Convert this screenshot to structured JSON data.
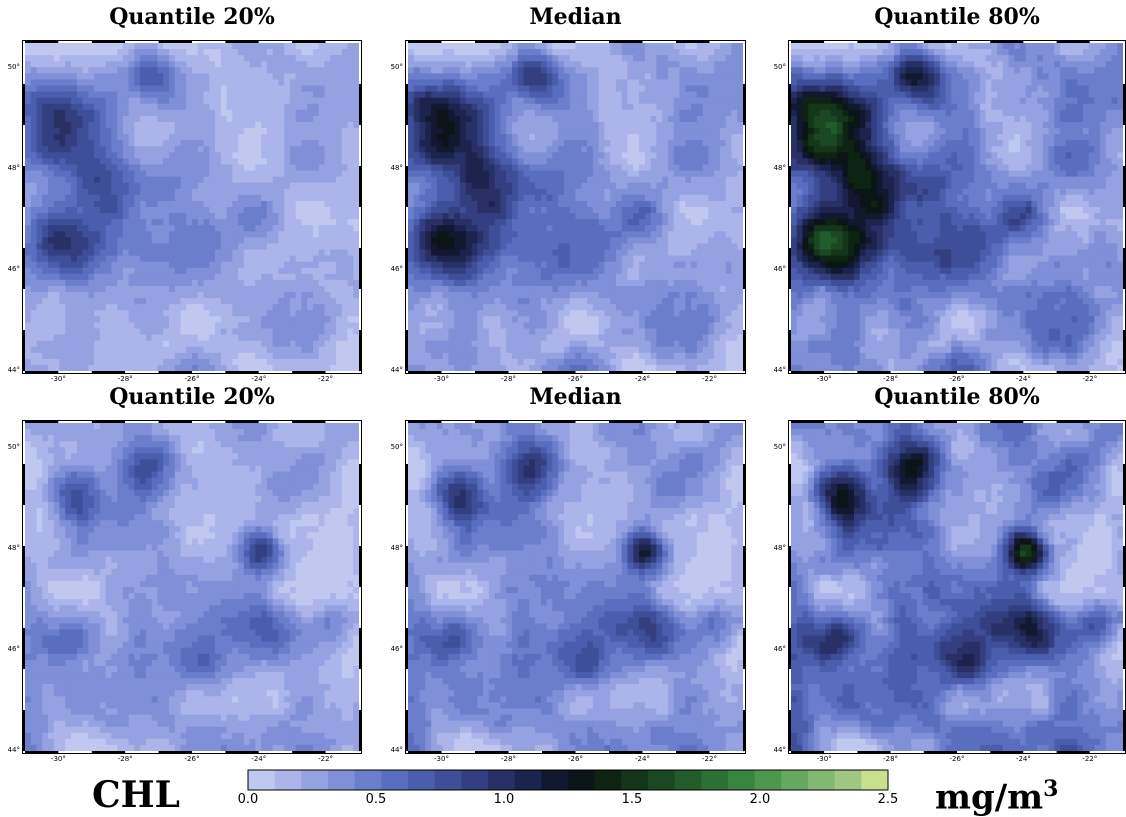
{
  "chart_data": [
    {
      "type": "heatmap",
      "title": "Quantile 20%",
      "variable": "CHL",
      "xlim": [
        -31,
        -21
      ],
      "ylim": [
        44,
        50.5
      ],
      "xticks": [
        "-30°",
        "-28°",
        "-26°",
        "-24°",
        "-22°"
      ],
      "yticks": [
        "44°",
        "46°",
        "48°",
        "50°"
      ]
    },
    {
      "type": "heatmap",
      "title": "Median",
      "variable": "CHL",
      "xlim": [
        -31,
        -21
      ],
      "ylim": [
        44,
        50.5
      ],
      "xticks": [
        "-30°",
        "-28°",
        "-26°",
        "-24°",
        "-22°"
      ],
      "yticks": [
        "44°",
        "46°",
        "48°",
        "50°"
      ]
    },
    {
      "type": "heatmap",
      "title": "Quantile 80%",
      "variable": "CHL",
      "xlim": [
        -31,
        -21
      ],
      "ylim": [
        44,
        50.5
      ],
      "xticks": [
        "-30°",
        "-28°",
        "-26°",
        "-24°",
        "-22°"
      ],
      "yticks": [
        "44°",
        "46°",
        "48°",
        "50°"
      ]
    },
    {
      "type": "heatmap",
      "title": "Quantile 20%",
      "variable": "CHL",
      "xlim": [
        -31,
        -21
      ],
      "ylim": [
        44,
        50.5
      ],
      "xticks": [
        "-30°",
        "-28°",
        "-26°",
        "-24°",
        "-22°"
      ],
      "yticks": [
        "44°",
        "46°",
        "48°",
        "50°"
      ]
    },
    {
      "type": "heatmap",
      "title": "Median",
      "variable": "CHL",
      "xlim": [
        -31,
        -21
      ],
      "ylim": [
        44,
        50.5
      ],
      "xticks": [
        "-30°",
        "-28°",
        "-26°",
        "-24°",
        "-22°"
      ],
      "yticks": [
        "44°",
        "46°",
        "48°",
        "50°"
      ]
    },
    {
      "type": "heatmap",
      "title": "Quantile 80%",
      "variable": "CHL",
      "xlim": [
        -31,
        -21
      ],
      "ylim": [
        44,
        50.5
      ],
      "xticks": [
        "-30°",
        "-28°",
        "-26°",
        "-24°",
        "-22°"
      ],
      "yticks": [
        "44°",
        "46°",
        "48°",
        "50°"
      ]
    }
  ],
  "colorbar": {
    "label": "CHL",
    "units": "mg/m",
    "units_exp": "3",
    "range": [
      0.0,
      2.5
    ],
    "ticks": [
      "0.0",
      "0.5",
      "1.0",
      "1.5",
      "2.0",
      "2.5"
    ],
    "colors": [
      "#c0c8f0",
      "#abb5ea",
      "#95a2e2",
      "#7f8fd8",
      "#6b7ecc",
      "#5a6ebf",
      "#4b5eae",
      "#3e4f99",
      "#333f80",
      "#283066",
      "#1c234c",
      "#121830",
      "#0b1517",
      "#0e2412",
      "#14361a",
      "#1b4822",
      "#235c2b",
      "#2c7035",
      "#398440",
      "#4e964e",
      "#67a860",
      "#83b872",
      "#9fc783",
      "#c8e08e"
    ]
  }
}
